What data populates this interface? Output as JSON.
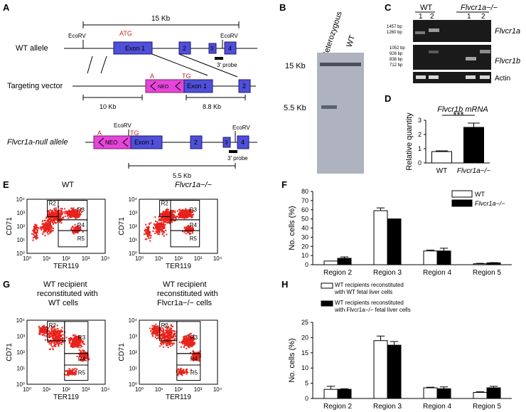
{
  "panels": {
    "A": "A",
    "B": "B",
    "C": "C",
    "D": "D",
    "E": "E",
    "F": "F",
    "G": "G",
    "H": "H"
  },
  "panelA": {
    "wt_label": "WT allele",
    "targeting_label": "Targeting vector",
    "null_label": "Flvcr1a-null allele",
    "scale_15kb": "15 Kb",
    "ecorv": "EcoRV",
    "atg": "ATG",
    "exon1": "Exon 1",
    "e2": "2",
    "e3": "3",
    "e4": "4",
    "probe": "3′ probe",
    "neo": "NEO",
    "a": "A",
    "tg": "TG",
    "kb10": "10 Kb",
    "kb88": "8.8 Kb",
    "kb55": "5.5 Kb"
  },
  "panelB": {
    "lane1": "Heterozygous",
    "lane2": "WT",
    "m15": "15 Kb",
    "m55": "5.5 Kb"
  },
  "panelC": {
    "wt": "WT",
    "ko": "Flvcr1a−/−",
    "l1": "1",
    "l2": "2",
    "l3": "1",
    "l4": "2",
    "top_markers": [
      "1457 bp",
      "1260 bp"
    ],
    "mid_markers": [
      "1052 bp",
      "926 bp",
      "838 bp",
      "712 bp"
    ],
    "gene1": "Flvcr1a",
    "gene2": "Flvcr1b",
    "actin": "Actin"
  },
  "chart_data": [
    {
      "id": "D",
      "type": "bar",
      "title": "Flvcr1b mRNA",
      "ylabel": "Relative quantity",
      "categories": [
        "WT",
        "Flvcr1a−/−"
      ],
      "values": [
        0.8,
        2.5
      ],
      "errors": [
        0.05,
        0.3
      ],
      "ylim": [
        0,
        3
      ],
      "yticks": [
        "0",
        "1",
        "2",
        "3"
      ],
      "significance": "***",
      "colors": [
        "#ffffff",
        "#000000"
      ]
    },
    {
      "id": "F",
      "type": "bar",
      "ylabel": "No. cells (%)",
      "categories": [
        "Region 2",
        "Region 3",
        "Region 4",
        "Region 5"
      ],
      "ylim": [
        0,
        80
      ],
      "yticks": [
        "0",
        "10",
        "20",
        "30",
        "40",
        "50",
        "60",
        "70",
        "80"
      ],
      "series": [
        {
          "name": "WT",
          "values": [
            4,
            59,
            15,
            1
          ],
          "errors": [
            0,
            3,
            1,
            0.5
          ],
          "color": "#ffffff"
        },
        {
          "name": "Flvcr1a−/−",
          "values": [
            7,
            50,
            15,
            2
          ],
          "errors": [
            1.5,
            0,
            3,
            0.3
          ],
          "color": "#000000"
        }
      ],
      "legend": "top-right"
    },
    {
      "id": "H",
      "type": "bar",
      "ylabel": "No. cells (%)",
      "categories": [
        "Region 2",
        "Region 3",
        "Region 4",
        "Region 5"
      ],
      "ylim": [
        0,
        25
      ],
      "yticks": [
        "0",
        "5",
        "10",
        "15",
        "20",
        "25"
      ],
      "series": [
        {
          "name": "WT recipients reconstituted with WT fetal liver cells",
          "values": [
            3,
            19,
            3.5,
            2
          ],
          "errors": [
            1,
            1.5,
            0.2,
            0.2
          ],
          "color": "#ffffff"
        },
        {
          "name": "WT recipients reconstituted with Flvcr1a−/− fetal liver cells",
          "values": [
            3,
            17.5,
            3.2,
            3.5
          ],
          "errors": [
            0.2,
            1.2,
            0.6,
            0.5
          ],
          "color": "#000000"
        }
      ],
      "legend": "top"
    }
  ],
  "flow": {
    "E_left_title": "WT",
    "E_right_title": "Flvcr1a−/−",
    "G_left_title1": "WT recipient",
    "G_left_title2": "reconstituted with",
    "G_left_title3": "WT cells",
    "G_right_title1": "WT recipient",
    "G_right_title2": "reconstituted with",
    "G_right_title3": "Flvcr1a−/− cells",
    "xlabel": "TER119",
    "ylabel": "CD71",
    "xticks": [
      "10⁰",
      "10¹",
      "10²",
      "10³",
      "10⁴"
    ],
    "yticks": [
      "10⁰",
      "10¹",
      "10²",
      "10³",
      "10⁴"
    ],
    "regions": [
      "R2",
      "R3",
      "R4",
      "R5"
    ]
  }
}
